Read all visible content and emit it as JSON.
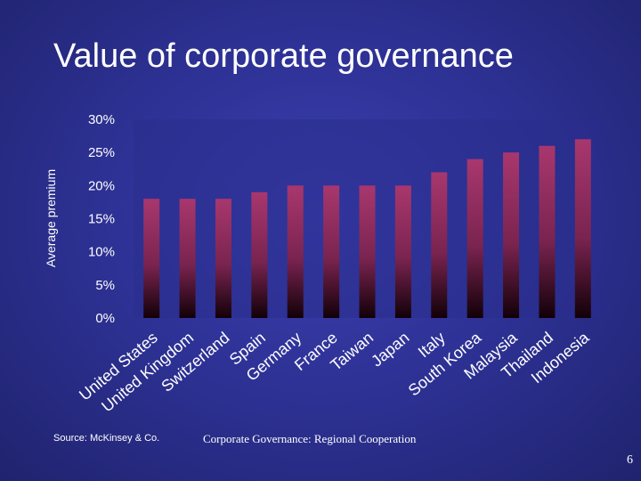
{
  "slide": {
    "title": "Value of corporate governance",
    "source": "Source: McKinsey & Co.",
    "footer": "Corporate Governance: Regional Cooperation",
    "page_number": "6"
  },
  "colors": {
    "bar_top": "#a8376e",
    "bar_bottom": "#120008",
    "plot_bg": "#2a2d8c",
    "grid": "#6a6ad0"
  },
  "chart_data": {
    "type": "bar",
    "title": "",
    "xlabel": "",
    "ylabel": "Average premium",
    "ylim": [
      0,
      30
    ],
    "yticks": [
      0,
      5,
      10,
      15,
      20,
      25,
      30
    ],
    "ytick_labels": [
      "0%",
      "5%",
      "10%",
      "15%",
      "20%",
      "25%",
      "30%"
    ],
    "categories": [
      "United States",
      "United Kingdom",
      "Switzerland",
      "Spain",
      "Germany",
      "France",
      "Taiwan",
      "Japan",
      "Italy",
      "South Korea",
      "Malaysia",
      "Thailand",
      "Indonesia"
    ],
    "values": [
      18,
      18,
      18,
      19,
      20,
      20,
      20,
      20,
      22,
      24,
      25,
      26,
      27
    ],
    "grid": false,
    "legend": "none"
  }
}
